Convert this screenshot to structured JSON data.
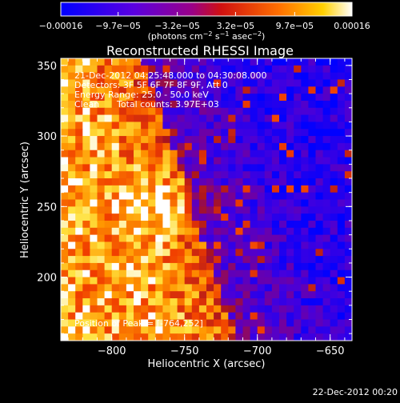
{
  "chart_data": {
    "type": "heatmap",
    "title": "Reconstructed RHESSI Image",
    "xlabel": "Heliocentric X (arcsec)",
    "ylabel": "Heliocentric Y (arcsec)",
    "xlim": [
      -835,
      -635
    ],
    "ylim": [
      155,
      355
    ],
    "x_ticks": [
      -800,
      -750,
      -700,
      -650
    ],
    "y_ticks": [
      200,
      250,
      300,
      350
    ],
    "x_tick_labels": [
      "−800",
      "−750",
      "−700",
      "−650"
    ],
    "y_tick_labels": [
      "200",
      "250",
      "300",
      "350"
    ],
    "colorbar": {
      "min": -0.00016,
      "max": 0.00016,
      "tick_values": [
        -0.00016,
        -9.7e-05,
        -3.2e-05,
        3.2e-05,
        9.7e-05,
        0.00016
      ],
      "tick_labels": [
        "−0.00016",
        "−9.7e−05",
        "−3.2e−05",
        "3.2e−05",
        "9.7e−05",
        "0.00016"
      ],
      "units_prefix": "(photons cm",
      "units_sup1": "−2",
      "units_mid": " s",
      "units_sup2": "−1",
      "units_mid2": " asec",
      "units_sup3": "−2",
      "units_suffix": ")",
      "colors": [
        "#0000ff",
        "#7a00d8",
        "#cc1010",
        "#ff6a00",
        "#ffc000",
        "#ffffff"
      ]
    },
    "grid_cols": 40,
    "grid_rows": 40,
    "peak": {
      "x": -764,
      "y": 252
    }
  },
  "info": {
    "line1": "21-Dec-2012 04:25:48.000 to 04:30:08.000",
    "line2": "Detectors: 3F 5F 6F 7F 8F 9F, Att 0",
    "line3": "Energy Range: 25.0 - 50.0 keV",
    "line4a": "Clean",
    "line4b": "Total counts: 3.97E+03"
  },
  "peak_label": "Position of Peak = [-764,252]",
  "footer_date": "22-Dec-2012 00:20"
}
